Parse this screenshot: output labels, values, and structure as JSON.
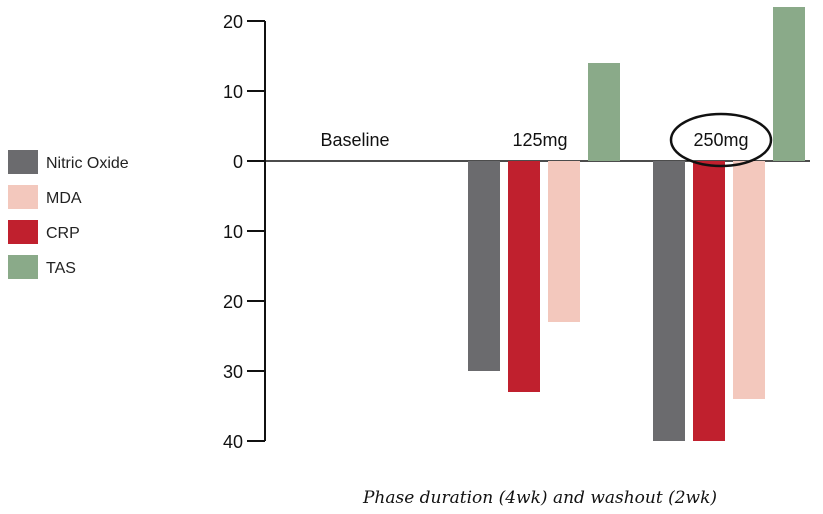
{
  "chart_data": {
    "type": "bar",
    "categories": [
      "Baseline",
      "125mg",
      "250mg"
    ],
    "highlighted_category": "250mg",
    "xlabel": "Phase duration (4wk) and washout (2wk)",
    "ylabel": "",
    "y_tick_values": [
      20,
      10,
      0,
      -10,
      -20,
      -30,
      -40
    ],
    "y_tick_labels": [
      "20",
      "10",
      "0",
      "10",
      "20",
      "30",
      "40"
    ],
    "ylim": [
      -40,
      20
    ],
    "grid": false,
    "legend_position": "left",
    "series": [
      {
        "name": "Nitric Oxide",
        "color": "#6b6b6e",
        "values": [
          0,
          -30,
          -40
        ]
      },
      {
        "name": "CRP",
        "color": "#c0202e",
        "values": [
          0,
          -33,
          -40
        ]
      },
      {
        "name": "MDA",
        "color": "#f3c8bd",
        "values": [
          0,
          -23,
          -34
        ]
      },
      {
        "name": "TAS",
        "color": "#8aaa89",
        "values": [
          0,
          14,
          22
        ]
      }
    ],
    "legend": [
      {
        "name": "Nitric Oxide",
        "color": "#6b6b6e"
      },
      {
        "name": "MDA",
        "color": "#f3c8bd"
      },
      {
        "name": "CRP",
        "color": "#c0202e"
      },
      {
        "name": "TAS",
        "color": "#8aaa89"
      }
    ]
  }
}
